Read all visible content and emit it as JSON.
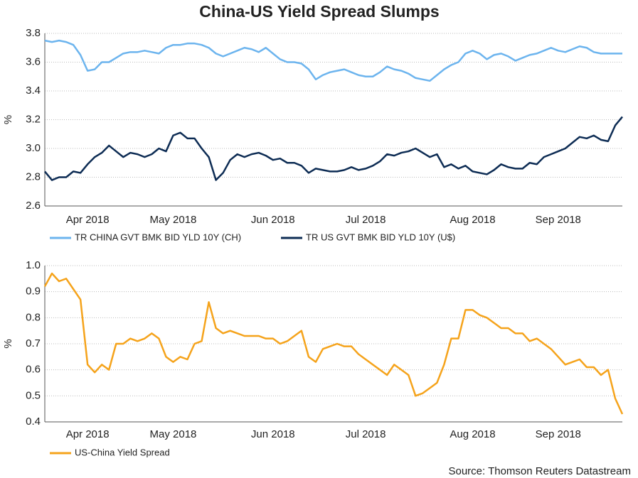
{
  "title": "China-US Yield Spread Slumps",
  "source": "Source: Thomson Reuters Datastream",
  "chart_data": [
    {
      "type": "line",
      "ylabel": "%",
      "categories": [
        null,
        null,
        null,
        null,
        null,
        null,
        "Apr 2018",
        null,
        null,
        null,
        null,
        null,
        null,
        null,
        null,
        null,
        null,
        null,
        "May 2018",
        null,
        null,
        null,
        null,
        null,
        null,
        null,
        null,
        null,
        null,
        null,
        null,
        null,
        "Jun 2018",
        null,
        null,
        null,
        null,
        null,
        null,
        null,
        null,
        null,
        null,
        null,
        null,
        "Jul 2018",
        null,
        null,
        null,
        null,
        null,
        null,
        null,
        null,
        null,
        null,
        null,
        null,
        null,
        null,
        "Aug 2018",
        null,
        null,
        null,
        null,
        null,
        null,
        null,
        null,
        null,
        null,
        null,
        "Sep 2018",
        null,
        null,
        null,
        null,
        null,
        null,
        null,
        null,
        null
      ],
      "ylim": [
        2.6,
        3.8
      ],
      "yticks": [
        2.6,
        2.8,
        {
          "value": 3,
          "label": "3.0"
        },
        3.2,
        3.4,
        3.6,
        3.8
      ],
      "grid": true,
      "series": [
        {
          "name": "TR CHINA GVT BMK BID YLD 10Y (CH)",
          "color": "#6cb4ee",
          "values": [
            3.75,
            3.74,
            3.75,
            3.74,
            3.72,
            3.65,
            3.54,
            3.55,
            3.6,
            3.6,
            3.63,
            3.66,
            3.67,
            3.67,
            3.68,
            3.67,
            3.66,
            3.7,
            3.72,
            3.72,
            3.73,
            3.73,
            3.72,
            3.7,
            3.66,
            3.64,
            3.66,
            3.68,
            3.7,
            3.69,
            3.67,
            3.7,
            3.66,
            3.62,
            3.6,
            3.6,
            3.59,
            3.55,
            3.48,
            3.51,
            3.53,
            3.54,
            3.55,
            3.53,
            3.51,
            3.5,
            3.5,
            3.53,
            3.57,
            3.55,
            3.54,
            3.52,
            3.49,
            3.48,
            3.47,
            3.51,
            3.55,
            3.58,
            3.6,
            3.66,
            3.68,
            3.66,
            3.62,
            3.65,
            3.66,
            3.64,
            3.61,
            3.63,
            3.65,
            3.66,
            3.68,
            3.7,
            3.68,
            3.67,
            3.69,
            3.71,
            3.7,
            3.67,
            3.66,
            3.66,
            3.66,
            3.66
          ]
        },
        {
          "name": "TR US GVT BMK BID YLD 10Y (U$)",
          "color": "#0d2c54",
          "values": [
            2.84,
            2.78,
            2.8,
            2.8,
            2.84,
            2.83,
            2.89,
            2.94,
            2.97,
            3.02,
            2.98,
            2.94,
            2.97,
            2.96,
            2.94,
            2.96,
            3.0,
            2.98,
            3.09,
            3.11,
            3.07,
            3.07,
            3.0,
            2.94,
            2.78,
            2.83,
            2.92,
            2.96,
            2.94,
            2.96,
            2.97,
            2.95,
            2.92,
            2.93,
            2.9,
            2.9,
            2.88,
            2.83,
            2.86,
            2.85,
            2.84,
            2.84,
            2.85,
            2.87,
            2.85,
            2.86,
            2.88,
            2.91,
            2.96,
            2.95,
            2.97,
            2.98,
            3.0,
            2.97,
            2.94,
            2.96,
            2.87,
            2.89,
            2.86,
            2.88,
            2.84,
            2.83,
            2.82,
            2.85,
            2.89,
            2.87,
            2.86,
            2.86,
            2.9,
            2.89,
            2.94,
            2.96,
            2.98,
            3.0,
            3.04,
            3.08,
            3.07,
            3.09,
            3.06,
            3.05,
            3.16,
            3.22
          ]
        }
      ]
    },
    {
      "type": "line",
      "ylabel": "%",
      "categories": [
        null,
        null,
        null,
        null,
        null,
        null,
        "Apr 2018",
        null,
        null,
        null,
        null,
        null,
        null,
        null,
        null,
        null,
        null,
        null,
        "May 2018",
        null,
        null,
        null,
        null,
        null,
        null,
        null,
        null,
        null,
        null,
        null,
        null,
        null,
        "Jun 2018",
        null,
        null,
        null,
        null,
        null,
        null,
        null,
        null,
        null,
        null,
        null,
        null,
        "Jul 2018",
        null,
        null,
        null,
        null,
        null,
        null,
        null,
        null,
        null,
        null,
        null,
        null,
        null,
        null,
        "Aug 2018",
        null,
        null,
        null,
        null,
        null,
        null,
        null,
        null,
        null,
        null,
        null,
        "Sep 2018",
        null,
        null,
        null,
        null,
        null,
        null,
        null,
        null,
        null
      ],
      "ylim": [
        0.4,
        1.0
      ],
      "yticks": [
        0.4,
        0.5,
        0.6,
        0.7,
        0.8,
        0.9,
        {
          "value": 1,
          "label": "1.0"
        }
      ],
      "grid": true,
      "series": [
        {
          "name": "US-China Yield Spread",
          "color": "#f5a31b",
          "values": [
            0.92,
            0.97,
            0.94,
            0.95,
            0.91,
            0.87,
            0.62,
            0.59,
            0.62,
            0.6,
            0.7,
            0.7,
            0.72,
            0.71,
            0.72,
            0.74,
            0.72,
            0.65,
            0.63,
            0.65,
            0.64,
            0.7,
            0.71,
            0.86,
            0.76,
            0.74,
            0.75,
            0.74,
            0.73,
            0.73,
            0.73,
            0.72,
            0.72,
            0.7,
            0.71,
            0.73,
            0.75,
            0.65,
            0.63,
            0.68,
            0.69,
            0.7,
            0.69,
            0.69,
            0.66,
            0.64,
            0.62,
            0.6,
            0.58,
            0.62,
            0.6,
            0.58,
            0.5,
            0.51,
            0.53,
            0.55,
            0.62,
            0.72,
            0.72,
            0.83,
            0.83,
            0.81,
            0.8,
            0.78,
            0.76,
            0.76,
            0.74,
            0.74,
            0.71,
            0.72,
            0.7,
            0.68,
            0.65,
            0.62,
            0.63,
            0.64,
            0.61,
            0.61,
            0.58,
            0.6,
            0.49,
            0.43
          ]
        }
      ]
    }
  ]
}
